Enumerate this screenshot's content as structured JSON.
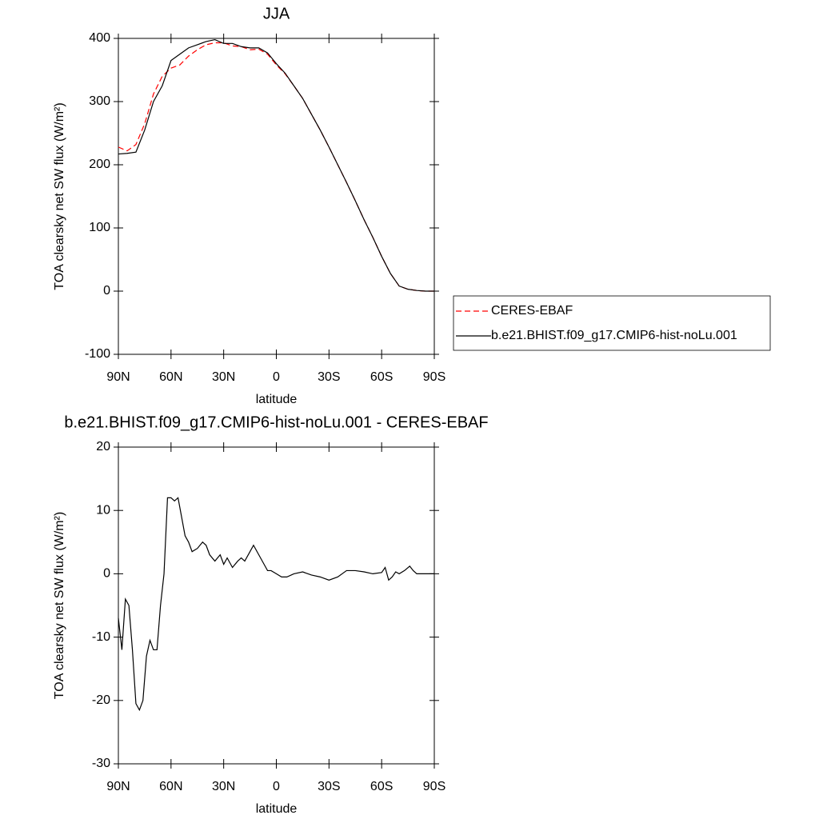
{
  "chart_data": [
    {
      "type": "line",
      "title": "JJA",
      "xlabel": "latitude",
      "ylabel": "TOA clearsky net SW flux (W/m²)",
      "x": [
        90,
        85,
        80,
        75,
        70,
        65,
        60,
        55,
        50,
        45,
        40,
        35,
        30,
        25,
        20,
        15,
        10,
        5,
        0,
        -5,
        -10,
        -15,
        -20,
        -25,
        -30,
        -35,
        -40,
        -45,
        -50,
        -55,
        -60,
        -65,
        -70,
        -75,
        -80,
        -85,
        -90
      ],
      "series": [
        {
          "name": "CERES-EBAF",
          "color": "#ff0000",
          "dash": true,
          "values": [
            228,
            222,
            232,
            265,
            312,
            340,
            353,
            358,
            372,
            382,
            390,
            393,
            393,
            388,
            387,
            382,
            383,
            375,
            358,
            344,
            325,
            305,
            280,
            255,
            228,
            200,
            172,
            143,
            113,
            85,
            55,
            28,
            8,
            3,
            1,
            0,
            0
          ]
        },
        {
          "name": "b.e21.BHIST.f09_g17.CMIP6-hist-noLu.001",
          "color": "#000000",
          "dash": false,
          "values": [
            217,
            218,
            220,
            255,
            300,
            325,
            365,
            375,
            385,
            390,
            395,
            398,
            392,
            392,
            387,
            385,
            385,
            377,
            360,
            345,
            325,
            305,
            280,
            255,
            228,
            200,
            172,
            143,
            113,
            85,
            55,
            28,
            8,
            3,
            1,
            0,
            0
          ]
        }
      ],
      "xlim": [
        90,
        -90
      ],
      "xticks": [
        {
          "value": 90,
          "label": "90N"
        },
        {
          "value": 60,
          "label": "60N"
        },
        {
          "value": 30,
          "label": "30N"
        },
        0,
        {
          "value": -30,
          "label": "30S"
        },
        {
          "value": -60,
          "label": "60S"
        },
        {
          "value": -90,
          "label": "90S"
        }
      ],
      "ylim": [
        -100,
        400
      ],
      "yticks": [
        -100,
        0,
        100,
        200,
        300,
        400
      ],
      "legend": "right"
    },
    {
      "type": "line",
      "title": "b.e21.BHIST.f09_g17.CMIP6-hist-noLu.001 - CERES-EBAF",
      "xlabel": "latitude",
      "ylabel": "TOA clearsky net SW flux (W/m²)",
      "x": [
        90,
        88,
        86,
        84,
        82,
        80,
        78,
        76,
        74,
        72,
        70,
        68,
        66,
        64,
        62,
        60,
        58,
        56,
        54,
        52,
        50,
        48,
        45,
        42,
        40,
        38,
        35,
        32,
        30,
        28,
        25,
        22,
        20,
        18,
        15,
        13,
        10,
        7,
        5,
        3,
        0,
        -3,
        -6,
        -10,
        -15,
        -20,
        -25,
        -30,
        -35,
        -40,
        -45,
        -50,
        -55,
        -60,
        -62,
        -64,
        -66,
        -68,
        -70,
        -73,
        -76,
        -78,
        -80,
        -90
      ],
      "series": [
        {
          "color": "#000000",
          "dash": false,
          "values": [
            -7,
            -12,
            -4,
            -5,
            -12,
            -20.5,
            -21.5,
            -20,
            -13,
            -10.5,
            -12,
            -12,
            -5,
            0,
            12,
            12,
            11.5,
            12,
            9,
            6,
            5,
            3.5,
            4,
            5,
            4.5,
            3,
            2,
            3,
            1.5,
            2.5,
            1,
            2,
            2.5,
            2,
            3.5,
            4.5,
            3,
            1.5,
            0.5,
            0.5,
            0,
            -0.5,
            -0.5,
            0,
            0.3,
            -0.2,
            -0.5,
            -1,
            -0.5,
            0.5,
            0.5,
            0.3,
            0,
            0.2,
            1,
            -1,
            -0.5,
            0.3,
            0,
            0.5,
            1.2,
            0.5,
            0,
            0
          ]
        }
      ],
      "xlim": [
        90,
        -90
      ],
      "xticks": [
        {
          "value": 90,
          "label": "90N"
        },
        {
          "value": 60,
          "label": "60N"
        },
        {
          "value": 30,
          "label": "30N"
        },
        0,
        {
          "value": -30,
          "label": "30S"
        },
        {
          "value": -60,
          "label": "60S"
        },
        {
          "value": -90,
          "label": "90S"
        }
      ],
      "ylim": [
        -30,
        20
      ],
      "yticks": [
        -30,
        -20,
        -10,
        0,
        10,
        20
      ]
    }
  ]
}
